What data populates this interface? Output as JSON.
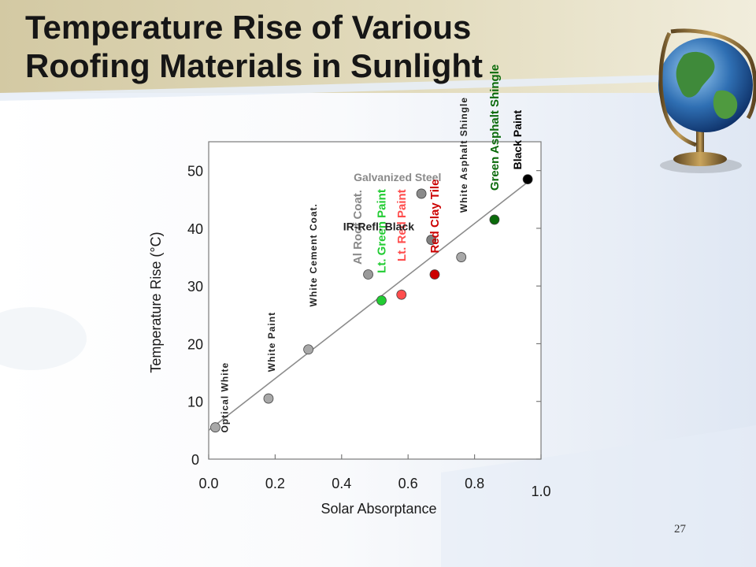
{
  "slide": {
    "title_line1": "Temperature Rise of Various",
    "title_line2": "Roofing Materials in Sunlight",
    "page_number": "27"
  },
  "chart_data": {
    "type": "scatter",
    "title": "",
    "xlabel": "Solar Absorptance",
    "ylabel": "Temperature Rise (°C)",
    "xlim": [
      0.0,
      1.0
    ],
    "ylim": [
      0,
      55
    ],
    "xticks": [
      "0.0",
      "0.2",
      "0.4",
      "0.6",
      "0.8",
      "1.0"
    ],
    "yticks": [
      "0",
      "10",
      "20",
      "30",
      "40",
      "50"
    ],
    "grid": false,
    "trendline": {
      "x": [
        0.0,
        0.96
      ],
      "y": [
        5,
        48
      ]
    },
    "points": [
      {
        "label": "Optical White",
        "x": 0.02,
        "y": 5.5,
        "color": "#a8a8a8",
        "label_color": "#222222"
      },
      {
        "label": "White Paint",
        "x": 0.18,
        "y": 10.5,
        "color": "#a8a8a8",
        "label_color": "#222222"
      },
      {
        "label": "White Cement Coat.",
        "x": 0.3,
        "y": 19,
        "color": "#a8a8a8",
        "label_color": "#222222"
      },
      {
        "label": "Al Roof Coat.",
        "x": 0.48,
        "y": 32,
        "color": "#9a9a9a",
        "label_color": "#8a8a8a"
      },
      {
        "label": "Lt. Green Paint",
        "x": 0.52,
        "y": 27.5,
        "color": "#22cc33",
        "label_color": "#22cc33"
      },
      {
        "label": "Lt. Red Paint",
        "x": 0.58,
        "y": 28.5,
        "color": "#ff4d4d",
        "label_color": "#ff4d4d"
      },
      {
        "label": "Galvanized Steel",
        "x": 0.64,
        "y": 46,
        "color": "#8a8a8a",
        "label_color": "#8a8a8a"
      },
      {
        "label": "IR-Refl. Black",
        "x": 0.67,
        "y": 38,
        "color": "#808080",
        "label_color": "#222222"
      },
      {
        "label": "Red Clay Tile",
        "x": 0.68,
        "y": 32,
        "color": "#cc0000",
        "label_color": "#cc0000"
      },
      {
        "label": "White Asphalt Shingle",
        "x": 0.76,
        "y": 35,
        "color": "#a8a8a8",
        "label_color": "#222222"
      },
      {
        "label": "Green Asphalt Shingle",
        "x": 0.86,
        "y": 41.5,
        "color": "#0a6a0a",
        "label_color": "#0a6a0a"
      },
      {
        "label": "Black Paint",
        "x": 0.96,
        "y": 48.5,
        "color": "#000000",
        "label_color": "#000000"
      }
    ]
  }
}
